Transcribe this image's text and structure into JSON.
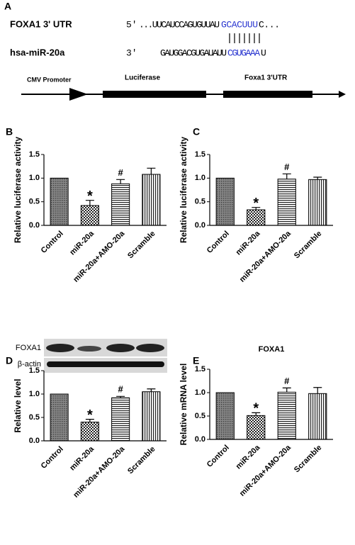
{
  "panel_a": {
    "label": "A",
    "utr_name": "FOXA1 3' UTR",
    "utr_end": "5'",
    "utr_seq": "...UUCAUCCAGUGUUAU",
    "utr_site": "GCACUUU",
    "utr_tail": "C...",
    "mirna_name": "hsa-miR-20a",
    "mirna_end": "3'",
    "mirna_seq": "GAUGGACGUGAUAUU",
    "mirna_seed": "CGUGAAA",
    "mirna_tail": "U",
    "construct": [
      "CMV Promoter",
      "Luciferase",
      "Foxa1 3'UTR"
    ]
  },
  "blot": {
    "rows": [
      "FOXA1",
      "β-actin"
    ]
  },
  "chart_data": [
    {
      "type": "bar",
      "panel": "B",
      "ylabel": "Relative luciferase activity",
      "categories": [
        "Control",
        "miR-20a",
        "miR-20a+AMO-20a",
        "Scramble"
      ],
      "values": [
        1.0,
        0.42,
        0.88,
        1.08
      ],
      "errors": [
        0,
        0.11,
        0.09,
        0.13
      ],
      "annotations": [
        null,
        "*",
        "#",
        null
      ],
      "patterns": [
        "dense",
        "checker",
        "hlines",
        "vlines"
      ],
      "ylim": [
        0,
        1.5
      ],
      "yticks": [
        {
          "value": 0,
          "label": "0.0"
        },
        0.5,
        {
          "value": 1,
          "label": "1.0"
        },
        1.5
      ]
    },
    {
      "type": "bar",
      "panel": "C",
      "ylabel": "Relative luciferase activity",
      "categories": [
        "Control",
        "miR-20a",
        "miR-20a+AMO-20a",
        "Scramble"
      ],
      "values": [
        1.0,
        0.33,
        0.98,
        0.97
      ],
      "errors": [
        0,
        0.05,
        0.11,
        0.05
      ],
      "annotations": [
        null,
        "*",
        "#",
        null
      ],
      "patterns": [
        "dense",
        "checker",
        "hlines",
        "vlines"
      ],
      "ylim": [
        0,
        1.5
      ],
      "yticks": [
        {
          "value": 0,
          "label": "0.0"
        },
        0.5,
        {
          "value": 1,
          "label": "1.0"
        },
        1.5
      ]
    },
    {
      "type": "bar",
      "panel": "D",
      "ylabel": "Relative level",
      "categories": [
        "Control",
        "miR-20a",
        "miR-20a+AMO-20a",
        "Scramble"
      ],
      "values": [
        1.0,
        0.4,
        0.92,
        1.05
      ],
      "errors": [
        0,
        0.06,
        0.03,
        0.06
      ],
      "annotations": [
        null,
        "*",
        "#",
        null
      ],
      "patterns": [
        "dense",
        "checker",
        "hlines",
        "vlines"
      ],
      "ylim": [
        0,
        1.5
      ],
      "yticks": [
        {
          "value": 0,
          "label": "0.0"
        },
        0.5,
        {
          "value": 1,
          "label": "1.0"
        },
        1.5
      ]
    },
    {
      "type": "bar",
      "panel": "E",
      "title": "FOXA1",
      "ylabel": "Relative mRNA level",
      "categories": [
        "Control",
        "miR-20a",
        "miR-20a+AMO-20a",
        "Scramble"
      ],
      "values": [
        1.0,
        0.51,
        1.01,
        0.98
      ],
      "errors": [
        0,
        0.06,
        0.09,
        0.13
      ],
      "annotations": [
        null,
        "*",
        "#",
        null
      ],
      "patterns": [
        "dense",
        "checker",
        "hlines",
        "vlines"
      ],
      "ylim": [
        0,
        1.5
      ],
      "yticks": [
        {
          "value": 0,
          "label": "0.0"
        },
        0.5,
        {
          "value": 1,
          "label": "1.0"
        },
        1.5
      ]
    }
  ]
}
